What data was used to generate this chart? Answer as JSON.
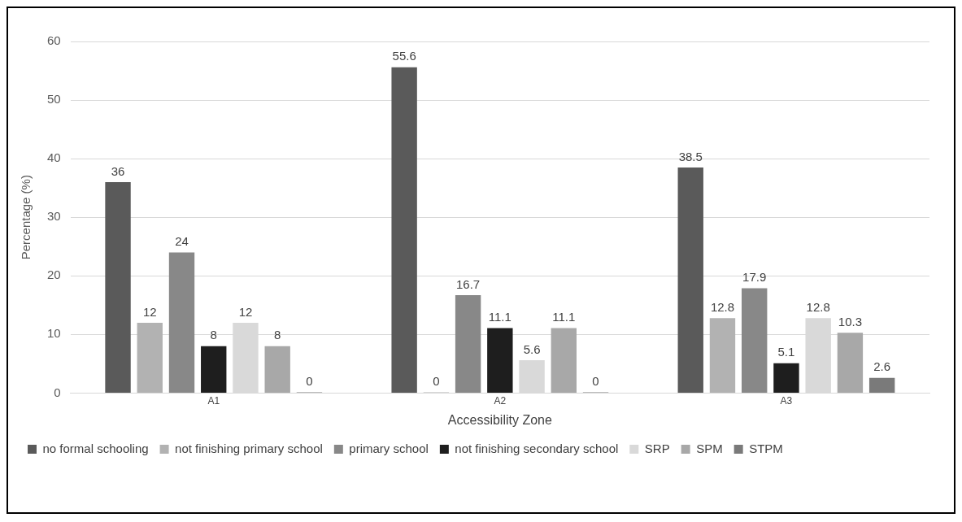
{
  "chart_data": {
    "type": "bar",
    "xlabel": "Accessibility Zone",
    "ylabel": "Percentage (%)",
    "categories": [
      "A1",
      "A2",
      "A3"
    ],
    "series": [
      {
        "name": "no formal schooling",
        "color": "#5a5a5a",
        "values": [
          36,
          55.6,
          38.5
        ]
      },
      {
        "name": "not finishing primary school",
        "color": "#b2b2b2",
        "values": [
          12,
          0,
          12.8
        ]
      },
      {
        "name": "primary school",
        "color": "#888888",
        "values": [
          24,
          16.7,
          17.9
        ]
      },
      {
        "name": "not finishing secondary school",
        "color": "#1e1e1e",
        "values": [
          8,
          11.1,
          5.1
        ]
      },
      {
        "name": "SRP",
        "color": "#d9d9d9",
        "values": [
          12,
          5.6,
          12.8
        ]
      },
      {
        "name": "SPM",
        "color": "#a8a8a8",
        "values": [
          8,
          11.1,
          10.3
        ]
      },
      {
        "name": "STPM",
        "color": "#7a7a7a",
        "values": [
          0,
          0,
          2.6
        ]
      }
    ],
    "ylim": [
      0,
      60
    ],
    "yticks": [
      0,
      10,
      20,
      30,
      40,
      50,
      60
    ],
    "grid": "y",
    "legend": "bottom",
    "data_labels": true
  }
}
